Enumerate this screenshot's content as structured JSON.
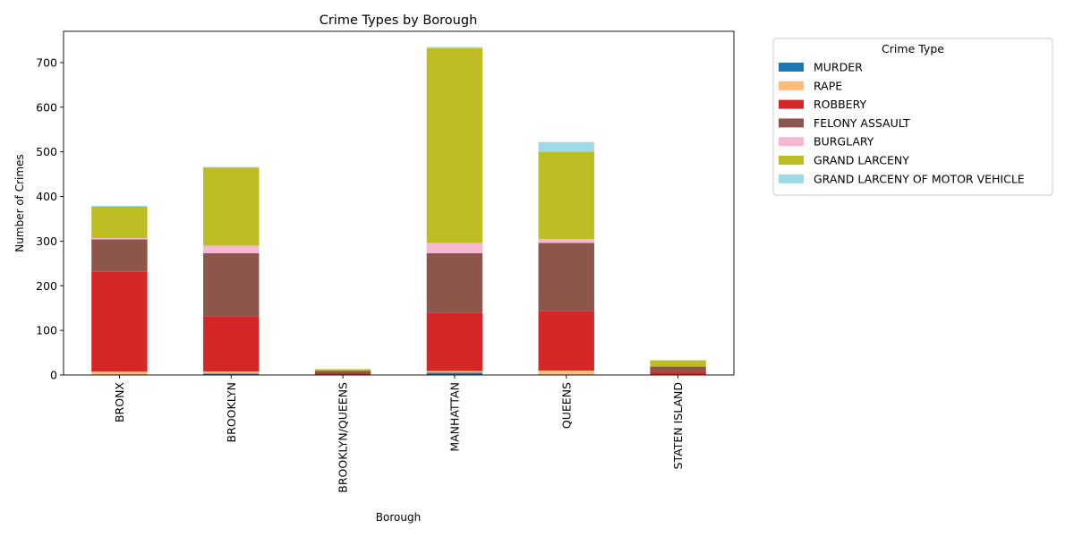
{
  "chart_data": {
    "type": "bar",
    "stacked": true,
    "title": "Crime Types by Borough",
    "xlabel": "Borough",
    "ylabel": "Number of Crimes",
    "ylim": [
      0,
      770
    ],
    "yticks": [
      0,
      100,
      200,
      300,
      400,
      500,
      600,
      700
    ],
    "grid": false,
    "legend_title": "Crime Type",
    "legend_position": "outside-top-right",
    "categories": [
      "BRONX",
      "BROOKLYN",
      "BROOKLYN/QUEENS",
      "MANHATTAN",
      "QUEENS",
      "STATEN ISLAND"
    ],
    "series": [
      {
        "name": "MURDER",
        "color": "#1f77b4",
        "values": [
          1,
          3,
          0,
          5,
          1,
          0
        ]
      },
      {
        "name": "RAPE",
        "color": "#ffbb78",
        "values": [
          7,
          5,
          1,
          4,
          9,
          1
        ]
      },
      {
        "name": "ROBBERY",
        "color": "#d62728",
        "values": [
          223,
          124,
          3,
          131,
          134,
          5
        ]
      },
      {
        "name": "FELONY ASSAULT",
        "color": "#8c564b",
        "values": [
          73,
          141,
          5,
          133,
          152,
          13
        ]
      },
      {
        "name": "BURGLARY",
        "color": "#f7b6d2",
        "values": [
          3,
          17,
          0,
          23,
          9,
          1
        ]
      },
      {
        "name": "GRAND LARCENY",
        "color": "#bcbd22",
        "values": [
          70,
          175,
          4,
          436,
          195,
          13
        ]
      },
      {
        "name": "GRAND LARCENY OF MOTOR VEHICLE",
        "color": "#9edae5",
        "values": [
          2,
          1,
          0,
          3,
          22,
          0
        ]
      }
    ]
  }
}
